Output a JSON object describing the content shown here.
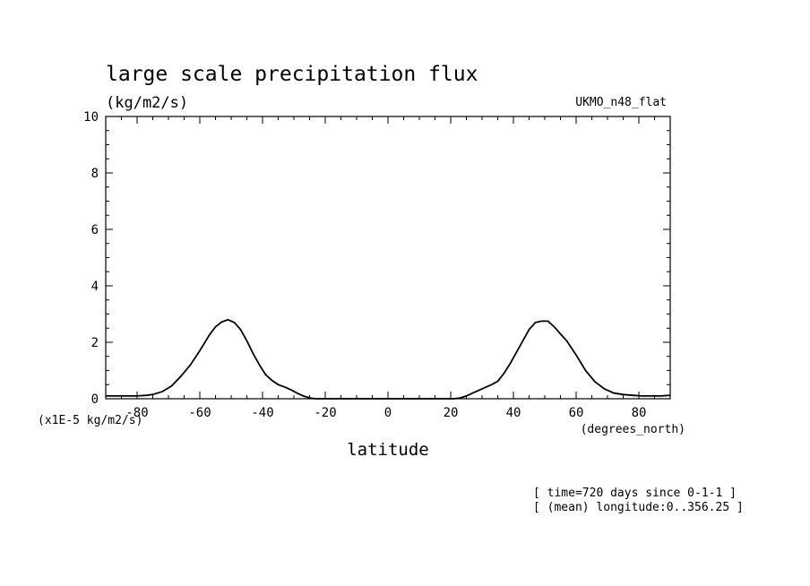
{
  "header": {
    "title": "large scale precipitation flux",
    "units": "(kg/m2/s)",
    "model": "UKMO_n48_flat"
  },
  "footer": {
    "scale_note": "(x1E-5 kg/m2/s)",
    "x_unit": "(degrees_north)",
    "time_note": "[ time=720 days since 0-1-1 ]",
    "mean_note": "[ (mean) longitude:0..356.25 ]"
  },
  "chart_data": {
    "type": "line",
    "title": "large scale precipitation flux",
    "xlabel": "latitude",
    "ylabel": "(kg/m2/s)",
    "xlim": [
      -90,
      90
    ],
    "ylim": [
      0,
      10
    ],
    "x_ticks": [
      -80,
      -60,
      -40,
      -20,
      0,
      20,
      40,
      60,
      80
    ],
    "y_ticks": [
      0,
      2,
      4,
      6,
      8,
      10
    ],
    "grid": false,
    "series": [
      {
        "name": "UKMO_n48_flat",
        "x": [
          -90,
          -85,
          -80,
          -77,
          -75,
          -72,
          -69,
          -66,
          -63,
          -60,
          -57,
          -55,
          -53,
          -51,
          -49,
          -47,
          -45,
          -43,
          -41,
          -39,
          -37,
          -35,
          -33,
          -31,
          -29,
          -27,
          -25,
          -23,
          -21,
          -18,
          -10,
          0,
          10,
          18,
          21,
          23,
          25,
          27,
          29,
          31,
          33,
          35,
          37,
          39,
          41,
          43,
          45,
          47,
          49,
          51,
          53,
          55,
          57,
          60,
          63,
          66,
          69,
          72,
          75,
          78,
          81,
          84,
          87,
          90
        ],
        "y": [
          0.1,
          0.1,
          0.1,
          0.12,
          0.15,
          0.25,
          0.45,
          0.8,
          1.2,
          1.7,
          2.25,
          2.55,
          2.72,
          2.8,
          2.7,
          2.45,
          2.05,
          1.6,
          1.2,
          0.85,
          0.65,
          0.5,
          0.42,
          0.32,
          0.2,
          0.1,
          0.03,
          0.0,
          0.0,
          0.0,
          0.0,
          0.0,
          0.0,
          0.0,
          0.0,
          0.03,
          0.1,
          0.2,
          0.3,
          0.4,
          0.5,
          0.62,
          0.9,
          1.25,
          1.65,
          2.05,
          2.45,
          2.7,
          2.75,
          2.75,
          2.55,
          2.3,
          2.05,
          1.55,
          1.0,
          0.6,
          0.35,
          0.2,
          0.15,
          0.12,
          0.1,
          0.1,
          0.1,
          0.12
        ]
      }
    ]
  }
}
